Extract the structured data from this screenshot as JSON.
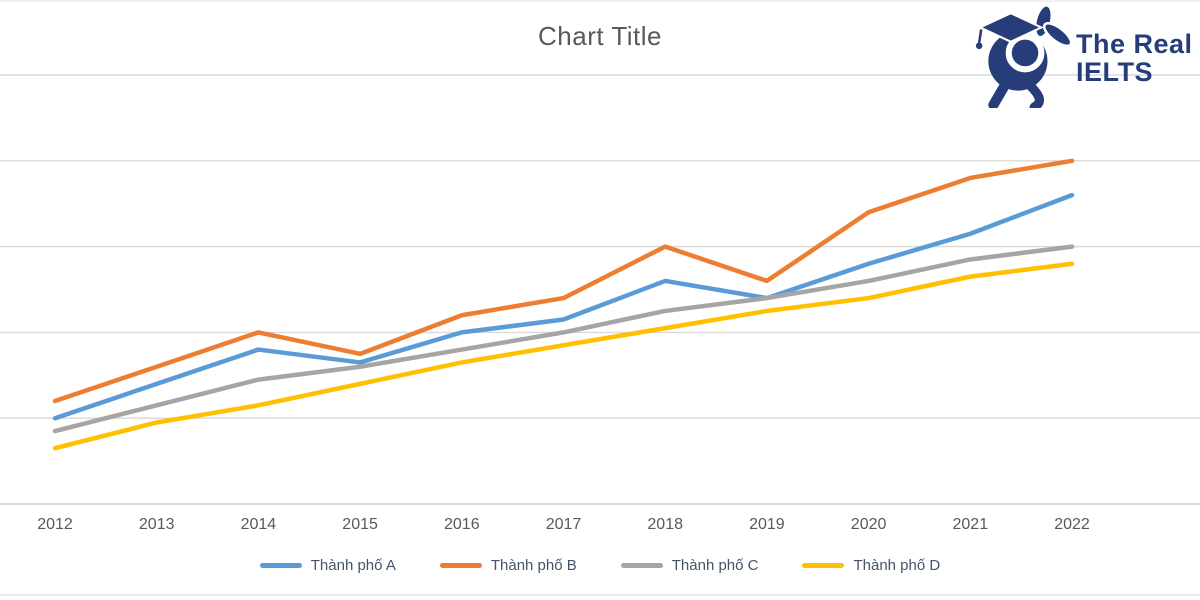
{
  "logo": {
    "line1": "The Real",
    "line2": "IELTS",
    "color": "#263D7A",
    "icon": "rabbit-graduation-cap-icon"
  },
  "colors": {
    "gridline": "#D9D9D9",
    "axis_line": "#CFCFCF",
    "axis_text": "#595959",
    "title_text": "#595959",
    "legend_text": "#44546A"
  },
  "chart_data": {
    "type": "line",
    "title": "Chart Title",
    "categories": [
      "2012",
      "2013",
      "2014",
      "2015",
      "2016",
      "2017",
      "2018",
      "2019",
      "2020",
      "2021",
      "2022"
    ],
    "series": [
      {
        "name": "Thành phố A",
        "color": "#5B9BD5",
        "values": [
          10,
          14,
          18,
          16.5,
          20,
          21.5,
          26,
          24,
          28,
          31.5,
          36
        ]
      },
      {
        "name": "Thành phố B",
        "color": "#ED7D31",
        "values": [
          12,
          16,
          20,
          17.5,
          22,
          24,
          30,
          26,
          34,
          38,
          40
        ]
      },
      {
        "name": "Thành phố C",
        "color": "#A5A5A5",
        "values": [
          8.5,
          11.5,
          14.5,
          16,
          18,
          20,
          22.5,
          24,
          26,
          28.5,
          30
        ]
      },
      {
        "name": "Thành phố D",
        "color": "#FFC000",
        "values": [
          6.5,
          9.5,
          11.5,
          14,
          16.5,
          18.5,
          20.5,
          22.5,
          24,
          26.5,
          28
        ]
      }
    ],
    "xlabel": "",
    "ylabel": "",
    "ylim": [
      0,
      50
    ],
    "y_gridline_step": 10,
    "y_axis_labels_visible": false,
    "grid": true,
    "legend_position": "bottom"
  }
}
